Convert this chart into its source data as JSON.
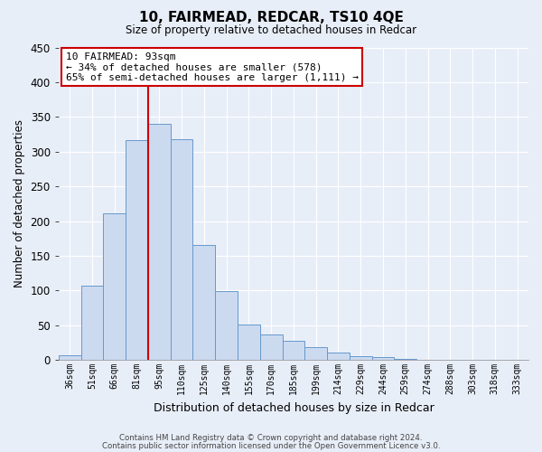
{
  "title": "10, FAIRMEAD, REDCAR, TS10 4QE",
  "subtitle": "Size of property relative to detached houses in Redcar",
  "xlabel": "Distribution of detached houses by size in Redcar",
  "ylabel": "Number of detached properties",
  "bar_labels": [
    "36sqm",
    "51sqm",
    "66sqm",
    "81sqm",
    "95sqm",
    "110sqm",
    "125sqm",
    "140sqm",
    "155sqm",
    "170sqm",
    "185sqm",
    "199sqm",
    "214sqm",
    "229sqm",
    "244sqm",
    "259sqm",
    "274sqm",
    "288sqm",
    "303sqm",
    "318sqm",
    "333sqm"
  ],
  "bar_values": [
    7,
    107,
    211,
    317,
    340,
    318,
    165,
    99,
    51,
    37,
    28,
    18,
    10,
    5,
    4,
    2,
    0,
    0,
    0,
    0,
    0
  ],
  "bar_color": "#ccdaf0",
  "bar_edge_color": "#6699cc",
  "ylim": [
    0,
    450
  ],
  "yticks": [
    0,
    50,
    100,
    150,
    200,
    250,
    300,
    350,
    400,
    450
  ],
  "annotation_title": "10 FAIRMEAD: 93sqm",
  "annotation_line1": "← 34% of detached houses are smaller (578)",
  "annotation_line2": "65% of semi-detached houses are larger (1,111) →",
  "footer_line1": "Contains HM Land Registry data © Crown copyright and database right 2024.",
  "footer_line2": "Contains public sector information licensed under the Open Government Licence v3.0.",
  "background_color": "#e8eef8",
  "plot_bg_color": "#e8eef8",
  "grid_color": "#ffffff",
  "annotation_box_color": "#ffffff",
  "annotation_box_edge_color": "#cc0000",
  "red_line_color": "#cc0000",
  "red_line_x": 4
}
